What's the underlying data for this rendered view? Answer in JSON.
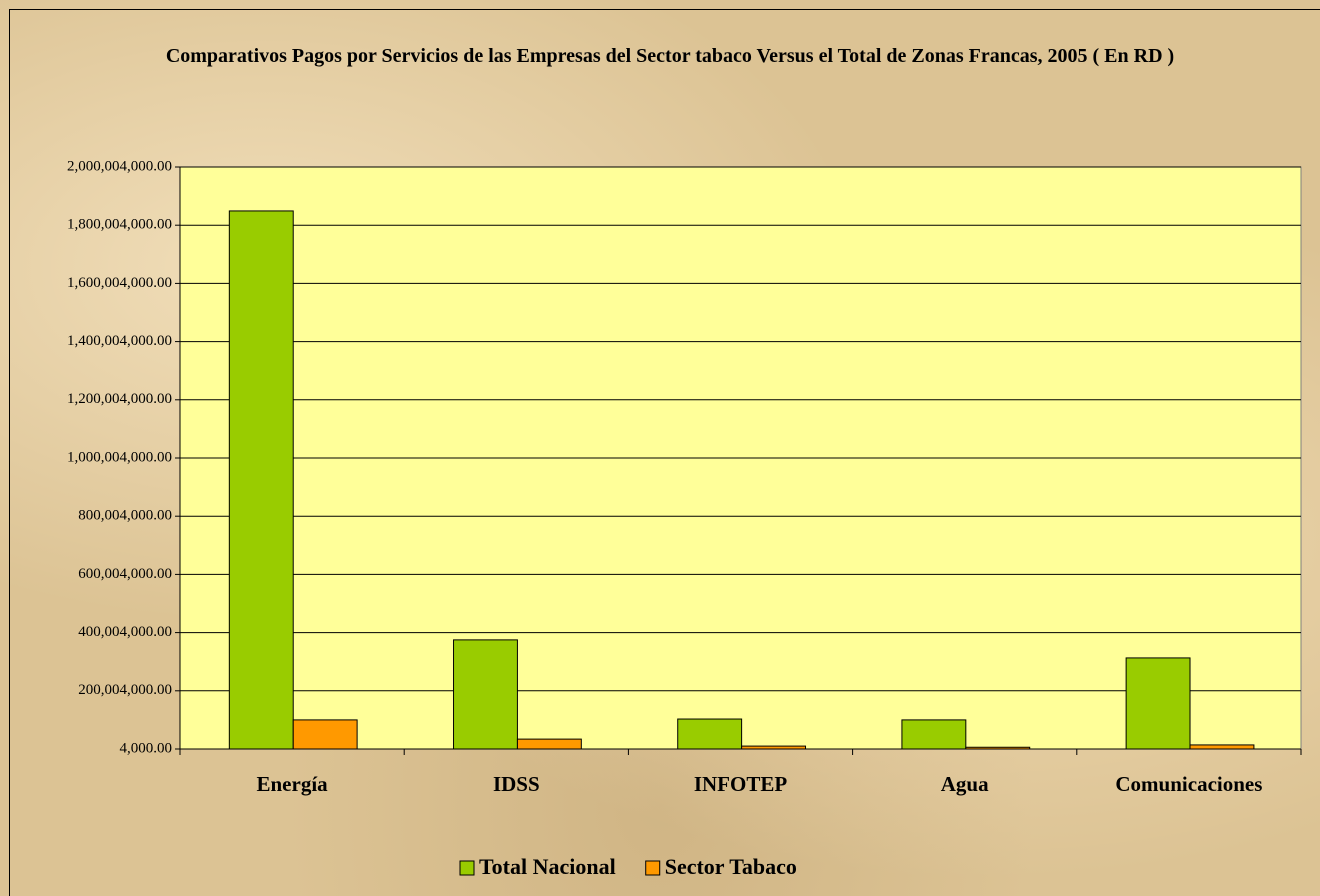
{
  "chart_data": {
    "type": "bar",
    "title": "Comparativos Pagos por Servicios de las Empresas del Sector tabaco Versus el Total de Zonas Francas, 2005 ( En RD )",
    "categories": [
      "Energía",
      "IDSS",
      "INFOTEP",
      "Agua",
      "Comunicaciones"
    ],
    "series": [
      {
        "name": "Total Nacional",
        "color": "#99cc00",
        "values": [
          1849000000,
          375000000,
          103000000,
          100000000,
          313000000
        ]
      },
      {
        "name": "Sector Tabaco",
        "color": "#ff9900",
        "values": [
          100000000,
          34000000,
          10000000,
          6000000,
          14000000
        ]
      }
    ],
    "ylim": [
      4000,
      2000004000
    ],
    "yticks": [
      {
        "value": 4000,
        "label": "4,000.00"
      },
      {
        "value": 200004000,
        "label": "200,004,000.00"
      },
      {
        "value": 400004000,
        "label": "400,004,000.00"
      },
      {
        "value": 600004000,
        "label": "600,004,000.00"
      },
      {
        "value": 800004000,
        "label": "800,004,000.00"
      },
      {
        "value": 1000004000,
        "label": "1,000,004,000.00"
      },
      {
        "value": 1200004000,
        "label": "1,200,004,000.00"
      },
      {
        "value": 1400004000,
        "label": "1,400,004,000.00"
      },
      {
        "value": 1600004000,
        "label": "1,600,004,000.00"
      },
      {
        "value": 1800004000,
        "label": "1,800,004,000.00"
      },
      {
        "value": 2000004000,
        "label": "2,000,004,000.00"
      }
    ],
    "grid": true,
    "legend": "bottom",
    "plot_background": "#ffff99"
  }
}
